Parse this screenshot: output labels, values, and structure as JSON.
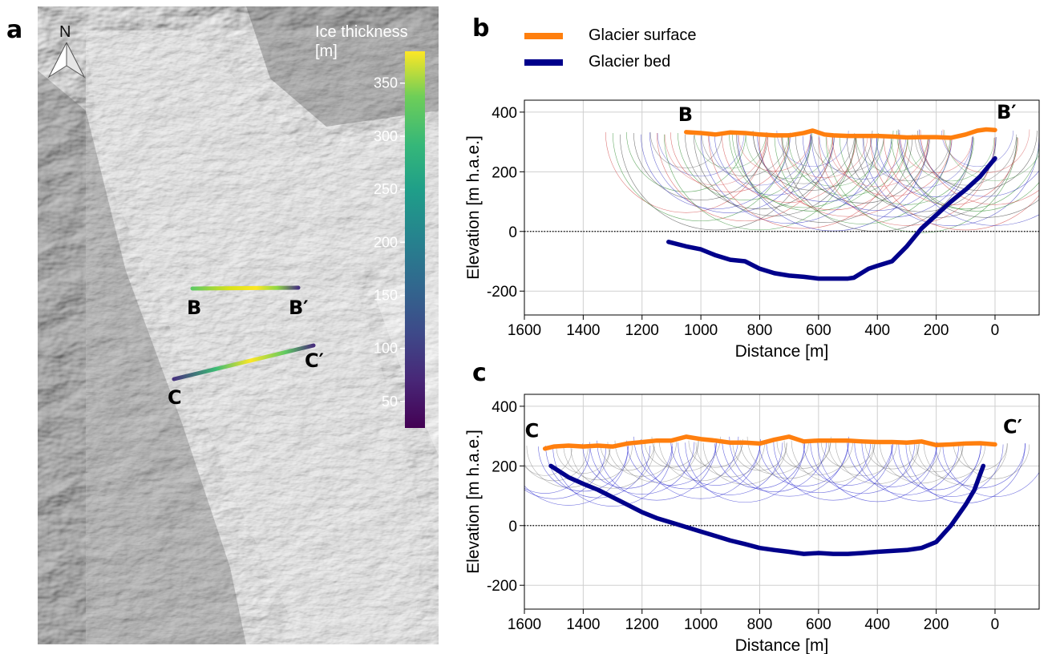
{
  "panel_labels": {
    "a": "a",
    "b": "b",
    "c": "c"
  },
  "map": {
    "north_label": "N",
    "colorbar": {
      "title_line1": "Ice thickness",
      "title_line2": "[m]",
      "ticks": [
        50,
        100,
        150,
        200,
        250,
        300,
        350
      ],
      "range": [
        25,
        380
      ],
      "colormap": "viridis"
    },
    "profiles": [
      {
        "start": "B",
        "end": "B′"
      },
      {
        "start": "C",
        "end": "C′"
      }
    ]
  },
  "legend": {
    "surface_label": "Glacier surface",
    "bed_label": "Glacier bed",
    "surface_color": "#ff7f0e",
    "bed_color": "#00008b"
  },
  "chart_data": [
    {
      "type": "line",
      "panel": "b",
      "xlabel": "Distance [m]",
      "ylabel": "Elevation [m h.a.e.]",
      "xlim": [
        1600,
        -150
      ],
      "ylim": [
        -280,
        440
      ],
      "xticks": [
        1600,
        1400,
        1200,
        1000,
        800,
        600,
        400,
        200,
        0
      ],
      "yticks": [
        -200,
        0,
        200,
        400
      ],
      "grid": true,
      "zero_line": "dotted",
      "start_label": "B",
      "end_label": "B′",
      "series": [
        {
          "name": "Glacier surface",
          "color": "#ff7f0e",
          "x": [
            1050,
            1000,
            950,
            900,
            850,
            800,
            750,
            700,
            650,
            620,
            580,
            550,
            500,
            450,
            400,
            350,
            300,
            250,
            200,
            150,
            100,
            60,
            30,
            0
          ],
          "y": [
            333,
            330,
            325,
            332,
            330,
            325,
            322,
            322,
            330,
            338,
            325,
            322,
            320,
            320,
            320,
            318,
            315,
            316,
            316,
            314,
            325,
            338,
            342,
            340
          ]
        },
        {
          "name": "Glacier bed",
          "color": "#00008b",
          "x": [
            1110,
            1050,
            1000,
            950,
            900,
            850,
            800,
            750,
            700,
            650,
            600,
            550,
            500,
            480,
            430,
            400,
            350,
            300,
            250,
            200,
            150,
            100,
            50,
            0
          ],
          "y": [
            -35,
            -50,
            -60,
            -80,
            -95,
            -100,
            -125,
            -140,
            -148,
            -152,
            -158,
            -158,
            -158,
            -155,
            -125,
            -115,
            -100,
            -50,
            10,
            55,
            100,
            140,
            185,
            245
          ]
        }
      ]
    },
    {
      "type": "line",
      "panel": "c",
      "xlabel": "Distance [m]",
      "ylabel": "Elevation [m h.a.e.]",
      "xlim": [
        1600,
        -150
      ],
      "ylim": [
        -280,
        440
      ],
      "xticks": [
        1600,
        1400,
        1200,
        1000,
        800,
        600,
        400,
        200,
        0
      ],
      "yticks": [
        -200,
        0,
        200,
        400
      ],
      "grid": true,
      "zero_line": "dotted",
      "start_label": "C",
      "end_label": "C′",
      "series": [
        {
          "name": "Glacier surface",
          "color": "#ff7f0e",
          "x": [
            1530,
            1500,
            1450,
            1400,
            1350,
            1300,
            1250,
            1200,
            1150,
            1100,
            1050,
            1000,
            950,
            900,
            850,
            800,
            750,
            700,
            650,
            600,
            550,
            500,
            450,
            400,
            350,
            300,
            250,
            200,
            150,
            100,
            50,
            0
          ],
          "y": [
            258,
            265,
            268,
            265,
            268,
            265,
            275,
            280,
            285,
            285,
            298,
            290,
            285,
            278,
            278,
            275,
            288,
            298,
            282,
            285,
            285,
            285,
            282,
            280,
            280,
            278,
            282,
            270,
            272,
            275,
            276,
            272
          ]
        },
        {
          "name": "Glacier bed",
          "color": "#00008b",
          "x": [
            1510,
            1450,
            1400,
            1350,
            1300,
            1250,
            1200,
            1150,
            1100,
            1050,
            1000,
            950,
            900,
            850,
            800,
            750,
            700,
            650,
            600,
            550,
            500,
            450,
            400,
            350,
            300,
            250,
            200,
            150,
            100,
            70,
            40
          ],
          "y": [
            200,
            162,
            140,
            120,
            95,
            70,
            45,
            25,
            10,
            -5,
            -20,
            -35,
            -50,
            -62,
            -75,
            -82,
            -88,
            -95,
            -92,
            -95,
            -95,
            -92,
            -88,
            -85,
            -82,
            -75,
            -55,
            0,
            70,
            120,
            200
          ]
        }
      ]
    }
  ]
}
